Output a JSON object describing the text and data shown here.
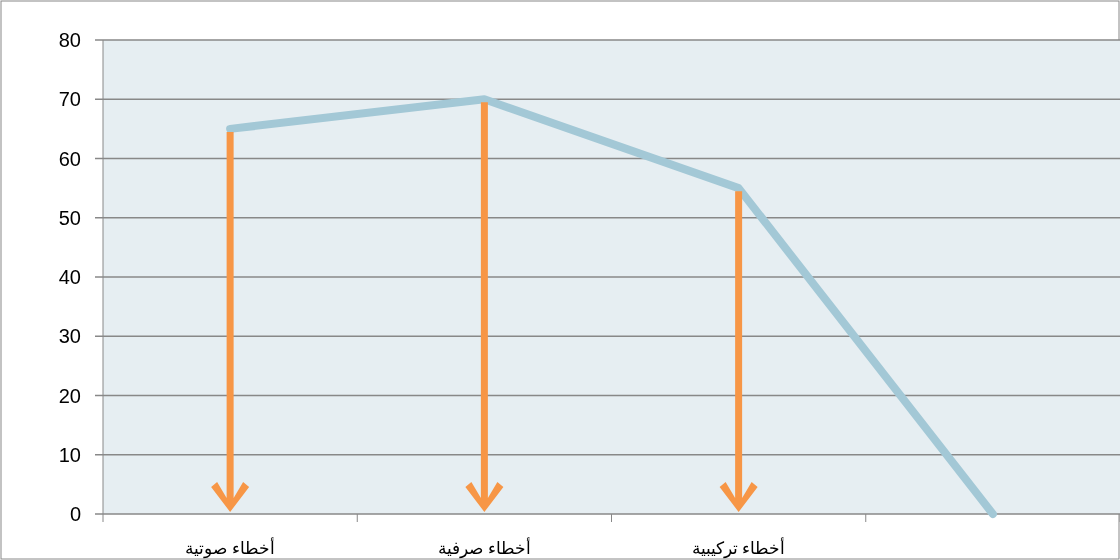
{
  "chart_data": {
    "type": "line",
    "categories": [
      "أخطاء صوتية",
      "أخطاء صرفية",
      "أخطاء تركيبية",
      null
    ],
    "series": [
      {
        "color": "#a3c8d6",
        "values": [
          65,
          70,
          55,
          0
        ]
      }
    ],
    "ylim": [
      0,
      80
    ],
    "yticks": [
      0,
      10,
      20,
      30,
      40,
      50,
      60,
      70,
      80
    ],
    "grid": "y",
    "marker": "none",
    "line_style": "solid"
  }
}
